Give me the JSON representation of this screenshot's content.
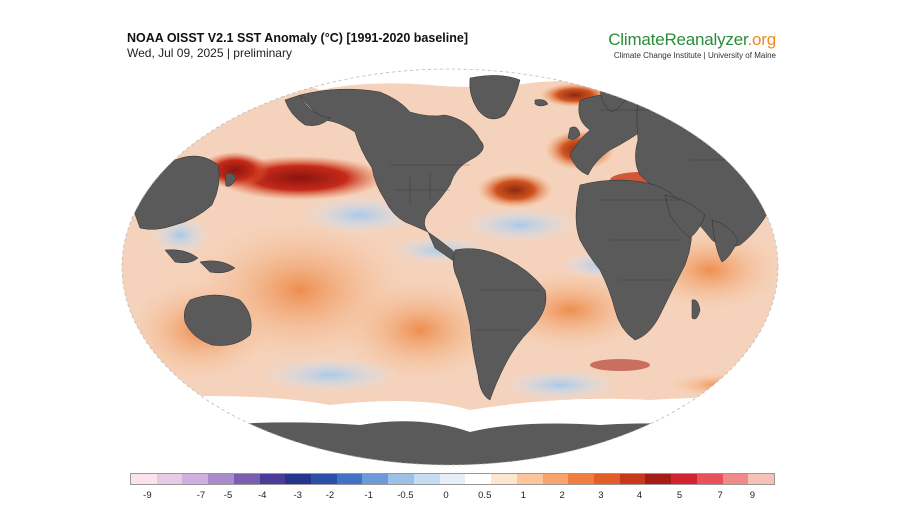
{
  "header": {
    "title": "NOAA OISST V2.1 SST Anomaly (°C) [1991-2020 baseline]",
    "date": "Wed, Jul 09, 2025 | preliminary"
  },
  "brand": {
    "name_part1": "ClimateReanalyzer",
    "name_part2": ".org",
    "subtitle": "Climate Change Institute | University of Maine"
  },
  "colors": {
    "land": "#5a5a5a",
    "ice": "#ffffff",
    "ocean_base": "#f7d7c3"
  },
  "legend": {
    "colors": [
      "#fbe3ee",
      "#e7cbe6",
      "#cdb0dd",
      "#a98bc9",
      "#7a5fae",
      "#4b3c9a",
      "#24358e",
      "#2c4fa8",
      "#3f73c4",
      "#6c9bd8",
      "#9cc0e6",
      "#c6dcf0",
      "#e6eef7",
      "#ffffff",
      "#fde6cf",
      "#fcc59c",
      "#f8a36b",
      "#f07e43",
      "#e25d28",
      "#c9381a",
      "#a51c14",
      "#d12430",
      "#e8505a",
      "#f08a8a",
      "#f6c1b6"
    ],
    "labels": [
      "-9",
      "-7",
      "-5",
      "-4",
      "-3",
      "-2",
      "-1",
      "-0.5",
      "0",
      "0.5",
      "1",
      "2",
      "3",
      "4",
      "5",
      "7",
      "9"
    ],
    "label_positions": [
      0.027,
      0.11,
      0.152,
      0.205,
      0.26,
      0.31,
      0.37,
      0.427,
      0.49,
      0.55,
      0.61,
      0.67,
      0.73,
      0.79,
      0.852,
      0.915,
      0.965
    ]
  }
}
